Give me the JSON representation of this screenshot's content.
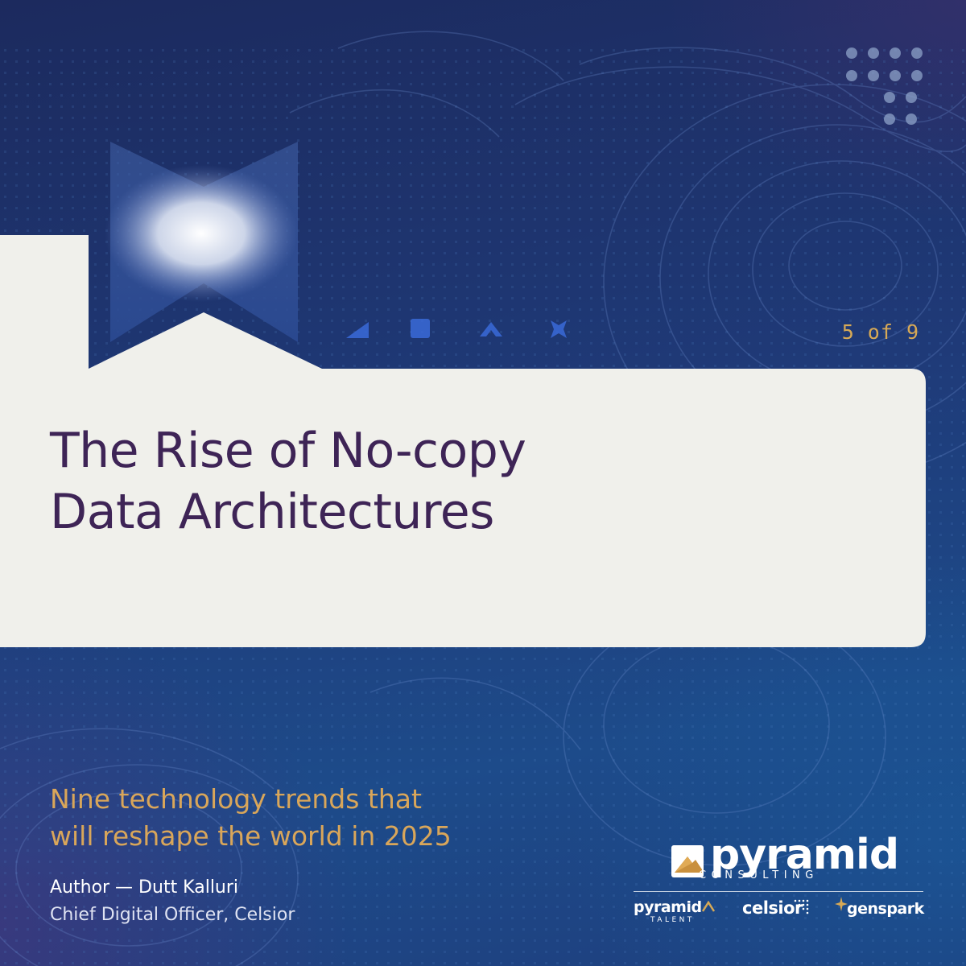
{
  "slide": {
    "counter": "5 of 9",
    "title_line1": "The Rise of No-copy",
    "title_line2": "Data Architectures",
    "subtitle_line1": "Nine technology trends that",
    "subtitle_line2": "will reshape the world in 2025",
    "author": "Author — Dutt Kalluri",
    "author_role": "Chief Digital Officer, Celsior"
  },
  "branding": {
    "main_logo_word": "pyramid",
    "main_logo_sub": "CONSULTING",
    "sub_logos": {
      "talent_word": "pyramid",
      "talent_tag": "TALENT",
      "celsior": "celsior",
      "genspark": "genspark"
    }
  },
  "colors": {
    "title": "#3e2456",
    "accent_gold": "#d7a956",
    "panel": "#f0f0eb",
    "background_dark": "#1c2a5e",
    "background_blue": "#1d4b8a"
  },
  "icons": [
    "dots-grid-icon",
    "bowtie-glow-icon",
    "triangle-icon",
    "square-icon",
    "chevron-up-icon",
    "x-cross-icon"
  ]
}
